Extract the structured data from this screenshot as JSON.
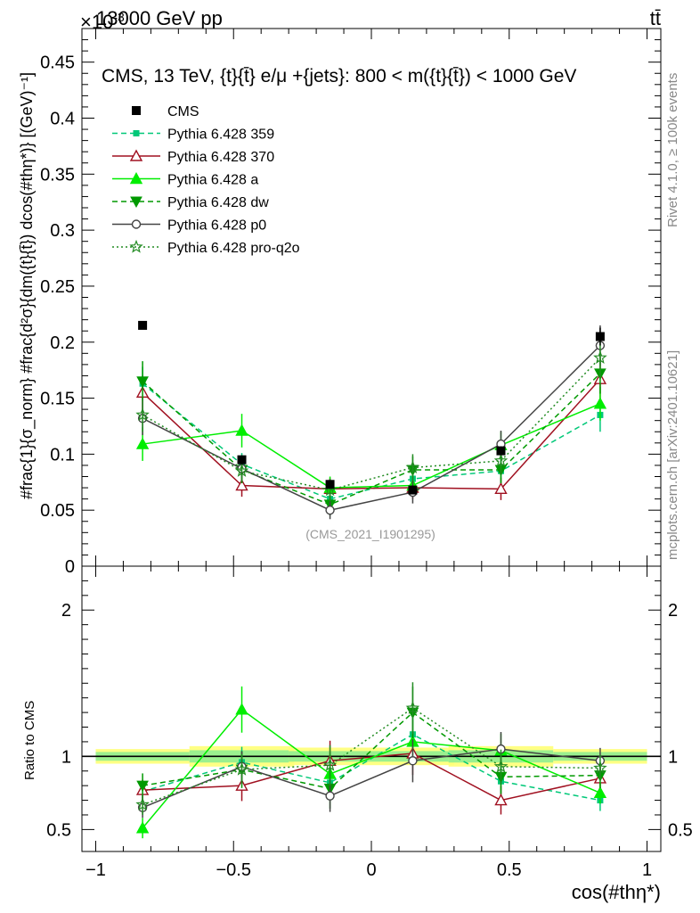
{
  "header": {
    "process_label": "13000 GeV pp",
    "exponent_label": "×10",
    "exponent_power": "-3",
    "final_state_label": "tt̄"
  },
  "side_labels": {
    "rivet": "Rivet 4.1.0, ≥ 100k events",
    "mcplots": "mcplots.cern.ch [arXiv:2401.10621]"
  },
  "chart_data": {
    "type": "line",
    "title": "CMS, 13 TeV, {t}{t̄} e/μ +{jets}: 800 < m({t}{t̄}) < 1000 GeV",
    "watermark": "(CMS_2021_I1901295)",
    "xlabel": "cos(#thη*)",
    "ylabel": "#frac{1}{σ_norm} #frac{d²σ}{dm({t}{t̄}) dcos(#thη*)} [(GeV)⁻¹]",
    "ratio_ylabel": "Ratio to CMS",
    "xlim": [
      -1.05,
      1.05
    ],
    "ylim": [
      0,
      0.48
    ],
    "ratio_ylim": [
      0.35,
      2.3
    ],
    "x_ticks": [
      "-1",
      "-0.5",
      "0",
      "0.5",
      "1"
    ],
    "y_ticks": [
      "0",
      "0.05",
      "0.1",
      "0.15",
      "0.2",
      "0.25",
      "0.3",
      "0.35",
      "0.4",
      "0.45"
    ],
    "ratio_ticks": [
      "0.5",
      "1",
      "2"
    ],
    "x": [
      -0.83,
      -0.47,
      -0.15,
      0.15,
      0.47,
      0.83
    ],
    "x_err": [
      0.17,
      0.19,
      0.15,
      0.15,
      0.19,
      0.17
    ],
    "data": {
      "name": "CMS",
      "values": [
        0.215,
        0.095,
        0.073,
        0.068,
        0.103,
        0.205
      ],
      "errors": [
        0.003,
        0.004,
        0.003,
        0.003,
        0.004,
        0.008
      ],
      "band_rel": [
        0.05,
        0.07,
        0.06,
        0.06,
        0.07,
        0.05
      ]
    },
    "series": [
      {
        "name": "Pythia 6.428 359",
        "color": "#00c878",
        "dash": "6,4",
        "marker": "square",
        "values": [
          0.163,
          0.091,
          0.06,
          0.078,
          0.085,
          0.135
        ],
        "errors": [
          0.015,
          0.01,
          0.008,
          0.01,
          0.012,
          0.015
        ],
        "ratio": [
          0.76,
          0.96,
          0.82,
          1.15,
          0.83,
          0.7
        ]
      },
      {
        "name": "Pythia 6.428 370",
        "color": "#a01020",
        "dash": "",
        "marker": "triangle-open",
        "values": [
          0.155,
          0.072,
          0.069,
          0.07,
          0.069,
          0.167
        ],
        "errors": [
          0.015,
          0.01,
          0.01,
          0.01,
          0.01,
          0.018
        ],
        "ratio": [
          0.77,
          0.8,
          0.97,
          1.02,
          0.7,
          0.85
        ]
      },
      {
        "name": "Pythia 6.428 a",
        "color": "#00ee00",
        "dash": "",
        "marker": "triangle",
        "values": [
          0.109,
          0.121,
          0.07,
          0.072,
          0.108,
          0.145
        ],
        "errors": [
          0.015,
          0.015,
          0.01,
          0.01,
          0.012,
          0.015
        ],
        "ratio": [
          0.51,
          1.32,
          0.88,
          1.1,
          1.04,
          0.75
        ]
      },
      {
        "name": "Pythia 6.428 dw",
        "color": "#009900",
        "dash": "6,4",
        "marker": "triangle-down",
        "values": [
          0.165,
          0.086,
          0.055,
          0.086,
          0.086,
          0.172
        ],
        "errors": [
          0.018,
          0.012,
          0.01,
          0.012,
          0.012,
          0.018
        ],
        "ratio": [
          0.8,
          0.91,
          0.78,
          1.3,
          0.86,
          0.87
        ]
      },
      {
        "name": "Pythia 6.428 p0",
        "color": "#444444",
        "dash": "",
        "marker": "circle-open",
        "values": [
          0.132,
          0.087,
          0.05,
          0.066,
          0.109,
          0.197
        ],
        "errors": [
          0.015,
          0.01,
          0.008,
          0.01,
          0.012,
          0.018
        ],
        "ratio": [
          0.65,
          0.93,
          0.73,
          0.97,
          1.05,
          0.97
        ]
      },
      {
        "name": "Pythia 6.428 pro-q2o",
        "color": "#228b22",
        "dash": "2,3",
        "marker": "star",
        "values": [
          0.135,
          0.085,
          0.068,
          0.088,
          0.094,
          0.186
        ],
        "errors": [
          0.015,
          0.01,
          0.01,
          0.012,
          0.012,
          0.018
        ],
        "ratio": [
          0.67,
          0.91,
          0.94,
          1.33,
          0.93,
          0.92
        ]
      }
    ]
  }
}
